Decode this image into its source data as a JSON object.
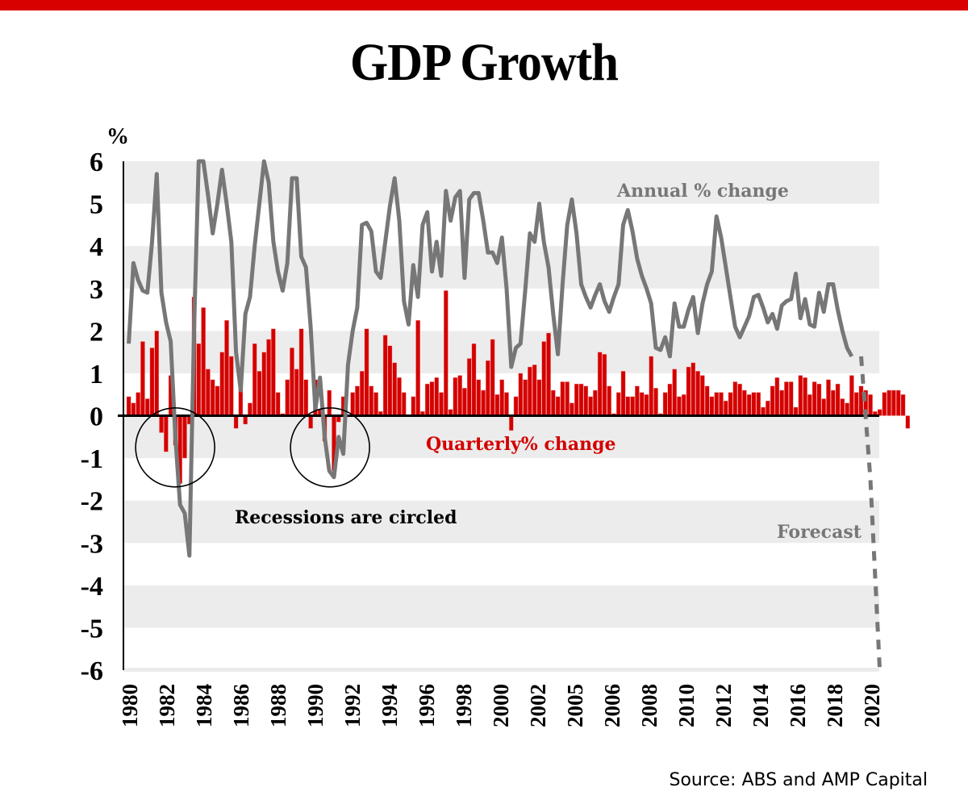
{
  "header": {
    "title": "GDP Growth",
    "accent_color": "#d90000"
  },
  "footer": {
    "source": "Source: ABS and AMP Capital"
  },
  "chart_data": {
    "type": "bar+line",
    "title": "GDP Growth",
    "ylabel": "%",
    "xlabel": "",
    "ylim": [
      -6,
      6
    ],
    "yticks": [
      "6",
      "5",
      "4",
      "3",
      "2",
      "1",
      "0",
      "-1",
      "-2",
      "-3",
      "-4",
      "-5",
      "-6"
    ],
    "ytick_values": [
      6,
      5,
      4,
      3,
      2,
      1,
      0,
      -1,
      -2,
      -3,
      -4,
      -5,
      -6
    ],
    "xtick_labels": [
      "1980",
      "1982",
      "1984",
      "1986",
      "1988",
      "1990",
      "1992",
      "1994",
      "1996",
      "1998",
      "2000",
      "2002",
      "2005",
      "2006",
      "2008",
      "2010",
      "2012",
      "2014",
      "2016",
      "2018",
      "2020"
    ],
    "x_range": [
      1980.0,
      2020.25
    ],
    "grid": "horizontal bands",
    "legend": "inline labels",
    "annotations": {
      "annual_label": "Annual % change",
      "quarterly_label": "Quarterly% change",
      "recessions_label": "Recessions are circled",
      "forecast_label": "Forecast"
    },
    "recession_circles": [
      {
        "x": 1982.6,
        "y": -0.9
      },
      {
        "x": 1990.9,
        "y": -0.9
      }
    ],
    "colors": {
      "quarterly": "#d40000",
      "annual": "#777777",
      "band": "#ececec",
      "circle": "#000000"
    },
    "series": [
      {
        "name": "Quarterly % change",
        "type": "bar",
        "start": 1980.0,
        "step": 0.25,
        "values": [
          0.45,
          0.3,
          0.55,
          1.75,
          0.4,
          1.6,
          2.0,
          -0.4,
          -0.85,
          0.95,
          -0.7,
          -1.6,
          -1.0,
          -0.2,
          2.8,
          1.7,
          2.55,
          1.1,
          0.85,
          0.7,
          1.5,
          2.25,
          1.4,
          -0.3,
          0.7,
          -0.2,
          0.3,
          1.7,
          1.05,
          1.5,
          1.8,
          2.05,
          0.55,
          0.05,
          0.85,
          1.6,
          1.1,
          2.05,
          0.85,
          -0.3,
          0.85,
          0.15,
          -0.6,
          0.6,
          -1.3,
          -0.15,
          0.45,
          0.0,
          0.55,
          0.7,
          1.05,
          2.05,
          0.7,
          0.55,
          0.1,
          1.9,
          1.65,
          1.25,
          0.9,
          0.55,
          0.0,
          0.45,
          2.25,
          0.1,
          0.75,
          0.8,
          0.9,
          0.55,
          2.95,
          0.15,
          0.9,
          0.95,
          0.65,
          1.35,
          1.7,
          0.85,
          0.6,
          1.3,
          1.8,
          0.5,
          0.85,
          0.55,
          -0.35,
          0.45,
          1.0,
          0.85,
          1.15,
          1.2,
          0.85,
          1.75,
          1.95,
          0.6,
          0.45,
          0.8,
          0.8,
          0.3,
          0.75,
          0.75,
          0.7,
          0.45,
          0.6,
          1.5,
          1.45,
          0.7,
          0.05,
          0.55,
          1.05,
          0.45,
          0.45,
          0.7,
          0.55,
          0.5,
          1.4,
          0.65,
          0.05,
          0.55,
          0.75,
          1.1,
          0.45,
          0.5,
          1.15,
          1.25,
          1.05,
          0.95,
          0.7,
          0.45,
          0.55,
          0.55,
          0.35,
          0.55,
          0.8,
          0.75,
          0.6,
          0.5,
          0.55,
          0.55,
          0.2,
          0.35,
          0.7,
          0.9,
          0.6,
          0.8,
          0.8,
          0.2,
          0.95,
          0.9,
          0.5,
          0.8,
          0.75,
          0.4,
          0.85,
          0.6,
          0.75,
          0.4,
          0.3,
          0.95,
          0.55,
          0.7,
          0.6,
          0.5,
          0.1,
          0.15,
          0.55,
          0.6,
          0.6,
          0.6,
          0.5,
          -0.3
        ]
      },
      {
        "name": "Annual % change",
        "type": "line",
        "start": 1980.0,
        "step": 0.25,
        "values": [
          1.7,
          3.6,
          3.2,
          2.95,
          2.9,
          4.1,
          5.7,
          2.9,
          2.2,
          1.75,
          -0.5,
          -2.1,
          -2.3,
          -3.3,
          2.0,
          6.4,
          6.1,
          5.2,
          4.3,
          5.0,
          5.8,
          5.0,
          4.1,
          1.5,
          0.6,
          2.4,
          2.8,
          4.0,
          5.0,
          6.4,
          5.5,
          4.1,
          3.4,
          2.95,
          3.6,
          5.6,
          5.6,
          3.75,
          3.5,
          2.1,
          0.15,
          0.9,
          -0.5,
          -1.3,
          -1.45,
          -0.5,
          -0.9,
          1.2,
          2.0,
          2.55,
          4.5,
          4.55,
          4.35,
          3.4,
          3.25,
          4.1,
          4.95,
          5.6,
          4.6,
          2.7,
          2.15,
          3.55,
          2.8,
          4.5,
          4.8,
          3.4,
          4.1,
          3.3,
          5.3,
          4.6,
          5.15,
          5.3,
          3.25,
          5.1,
          5.25,
          5.25,
          4.6,
          3.85,
          3.85,
          3.6,
          4.2,
          3.0,
          1.15,
          1.6,
          1.7,
          2.95,
          4.3,
          4.1,
          5.0,
          4.1,
          3.5,
          2.4,
          1.45,
          3.1,
          4.5,
          5.1,
          4.3,
          3.1,
          2.8,
          2.55,
          2.85,
          3.1,
          2.7,
          2.45,
          2.8,
          3.1,
          4.5,
          4.85,
          4.35,
          3.7,
          3.3,
          3.0,
          2.65,
          1.6,
          1.55,
          1.85,
          1.4,
          2.65,
          2.1,
          2.1,
          2.5,
          2.8,
          1.95,
          2.65,
          3.1,
          3.4,
          4.7,
          4.2,
          3.5,
          2.8,
          2.1,
          1.85,
          2.1,
          2.35,
          2.8,
          2.85,
          2.55,
          2.2,
          2.4,
          2.05,
          2.6,
          2.7,
          2.75,
          3.35,
          2.3,
          2.75,
          2.15,
          2.1,
          2.9,
          2.45,
          3.1,
          3.1,
          2.5,
          2.0,
          1.6,
          1.4
        ]
      },
      {
        "name": "Forecast",
        "type": "line-dashed",
        "x": [
          2019.25,
          2019.75,
          2020.25
        ],
        "values": [
          1.4,
          -1.5,
          -6.0
        ]
      }
    ]
  }
}
